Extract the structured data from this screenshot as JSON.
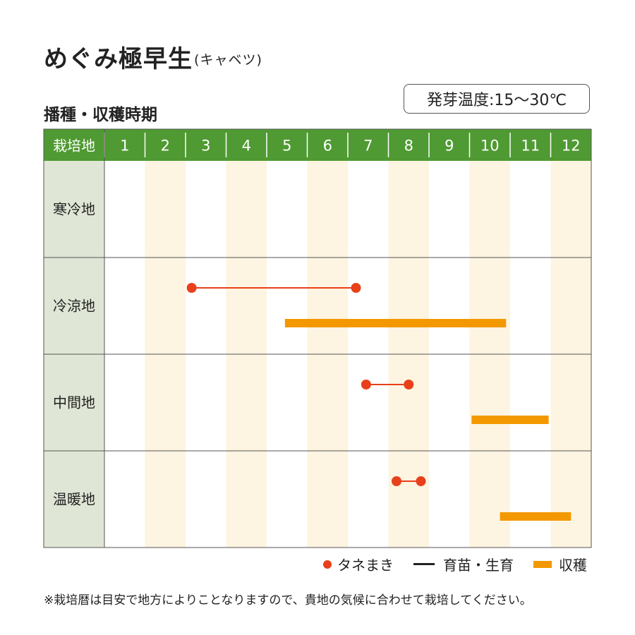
{
  "title": "めぐみ極早生",
  "subtitle": "(キャベツ)",
  "section_title": "播種・収穫時期",
  "germination_badge": "発芽温度:15〜30℃",
  "colors": {
    "header_green": "#4f9a32",
    "row_label_bg": "#dfe6d5",
    "alt_column": "#fdf4e1",
    "sowing": "#e8401a",
    "harvest": "#f39800"
  },
  "legend": {
    "sowing": "タネまき",
    "growing": "育苗・生育",
    "harvest": "収穫"
  },
  "note": "※栽培暦は目安で地方によりことなりますので、貴地の気候に合わせて栽培してください。",
  "chart_data": {
    "type": "gantt",
    "corner_label": "栽培地",
    "months": [
      "1",
      "2",
      "3",
      "4",
      "5",
      "6",
      "7",
      "8",
      "9",
      "10",
      "11",
      "12"
    ],
    "rows": [
      {
        "region": "寒冷地",
        "sowing": null,
        "harvest": null
      },
      {
        "region": "冷涼地",
        "sowing": {
          "start": 3.15,
          "end": 7.2
        },
        "harvest": {
          "start": 5.45,
          "end": 10.9
        }
      },
      {
        "region": "中間地",
        "sowing": {
          "start": 7.45,
          "end": 8.5
        },
        "harvest": {
          "start": 10.05,
          "end": 11.95
        }
      },
      {
        "region": "温暖地",
        "sowing": {
          "start": 8.2,
          "end": 8.8
        },
        "harvest": {
          "start": 10.75,
          "end": 12.5
        }
      }
    ],
    "series": [
      {
        "name": "タネまき"
      },
      {
        "name": "育苗・生育"
      },
      {
        "name": "収穫"
      }
    ],
    "x_range": [
      1,
      13
    ]
  }
}
